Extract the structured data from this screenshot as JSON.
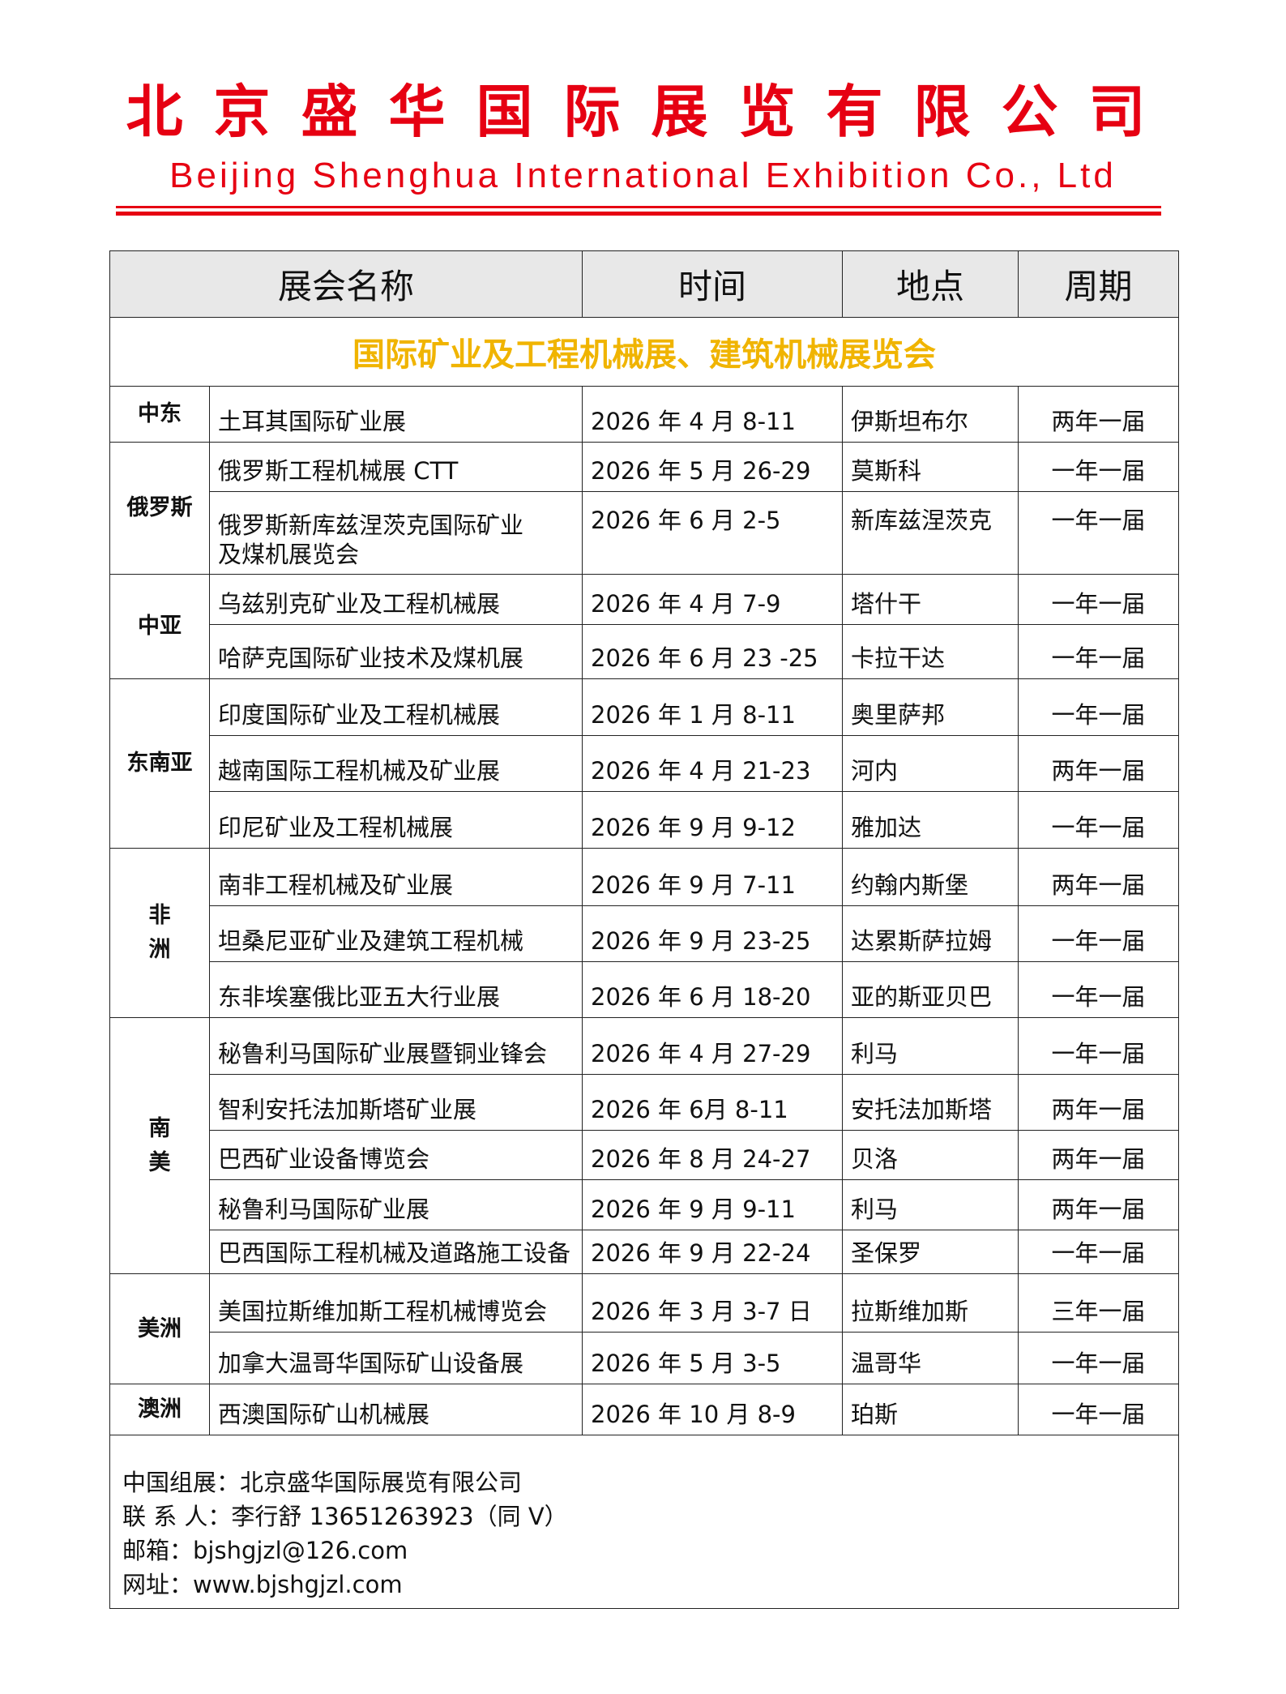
{
  "header": {
    "company_cn": "北京盛华国际展览有限公司",
    "company_en": "Beijing Shenghua International Exhibition Co., Ltd",
    "brand_color": "#e60012"
  },
  "table": {
    "columns": [
      "展会名称",
      "时间",
      "地点",
      "周期"
    ],
    "banner": "国际矿业及工程机械展、建筑机械展览会",
    "regions": [
      {
        "name": "中东",
        "rows": [
          [
            "土耳其国际矿业展",
            "2026 年 4 月 8-11",
            "伊斯坦布尔",
            "两年一届"
          ]
        ]
      },
      {
        "name": "俄罗斯",
        "rows": [
          [
            "俄罗斯工程机械展 CTT",
            "2026 年 5 月 26-29",
            "莫斯科",
            "一年一届"
          ],
          [
            "俄罗斯新库兹涅茨克国际矿业及煤机展览会",
            "2026 年 6 月 2-5",
            "新库兹涅茨克",
            "一年一届"
          ]
        ]
      },
      {
        "name": "中亚",
        "rows": [
          [
            "乌兹别克矿业及工程机械展",
            "2026 年 4 月 7-9",
            "塔什干",
            "一年一届"
          ],
          [
            "哈萨克国际矿业技术及煤机展",
            "2026 年 6 月 23 -25",
            "卡拉干达",
            "一年一届"
          ]
        ]
      },
      {
        "name": "东南亚",
        "rows": [
          [
            "印度国际矿业及工程机械展",
            "2026 年 1 月 8-11",
            "奥里萨邦",
            "一年一届"
          ],
          [
            "越南国际工程机械及矿业展",
            "2026 年 4 月 21-23",
            "河内",
            "两年一届"
          ],
          [
            "印尼矿业及工程机械展",
            "2026 年 9 月 9-12",
            "雅加达",
            "一年一届"
          ]
        ]
      },
      {
        "name": "非洲",
        "rows": [
          [
            "南非工程机械及矿业展",
            "2026 年 9 月 7-11",
            "约翰内斯堡",
            "两年一届"
          ],
          [
            "坦桑尼亚矿业及建筑工程机械",
            "2026 年 9 月 23-25",
            "达累斯萨拉姆",
            "一年一届"
          ],
          [
            "东非埃塞俄比亚五大行业展",
            "2026 年 6 月 18-20",
            "亚的斯亚贝巴",
            "一年一届"
          ]
        ]
      },
      {
        "name": "南美",
        "rows": [
          [
            "秘鲁利马国际矿业展暨铜业锋会",
            "2026 年 4 月 27-29",
            "利马",
            "一年一届"
          ],
          [
            "智利安托法加斯塔矿业展",
            "2026 年 6月 8-11",
            "安托法加斯塔",
            "两年一届"
          ],
          [
            "巴西矿业设备博览会",
            "2026 年 8 月 24-27",
            "贝洛",
            "两年一届"
          ],
          [
            "秘鲁利马国际矿业展",
            "2026 年 9 月 9-11",
            "利马",
            "两年一届"
          ],
          [
            "巴西国际工程机械及道路施工设备",
            "2026 年 9 月 22-24",
            "圣保罗",
            "一年一届"
          ]
        ]
      },
      {
        "name": "美洲",
        "rows": [
          [
            "美国拉斯维加斯工程机械博览会",
            "2026 年 3 月 3-7 日",
            "拉斯维加斯",
            "三年一届"
          ],
          [
            "加拿大温哥华国际矿山设备展",
            "2026 年 5 月 3-5",
            "温哥华",
            "一年一届"
          ]
        ]
      },
      {
        "name": "澳洲",
        "rows": [
          [
            "西澳国际矿山机械展",
            "2026 年 10 月 8-9",
            "珀斯",
            "一年一届"
          ]
        ]
      }
    ]
  },
  "footer": {
    "organizer": "中国组展：北京盛华国际展览有限公司",
    "contact": "联 系 人：李行舒 13651263923（同 V）",
    "email": "邮箱：bjshgjzl@126.com",
    "website": "网址：www.bjshgjzl.com"
  }
}
